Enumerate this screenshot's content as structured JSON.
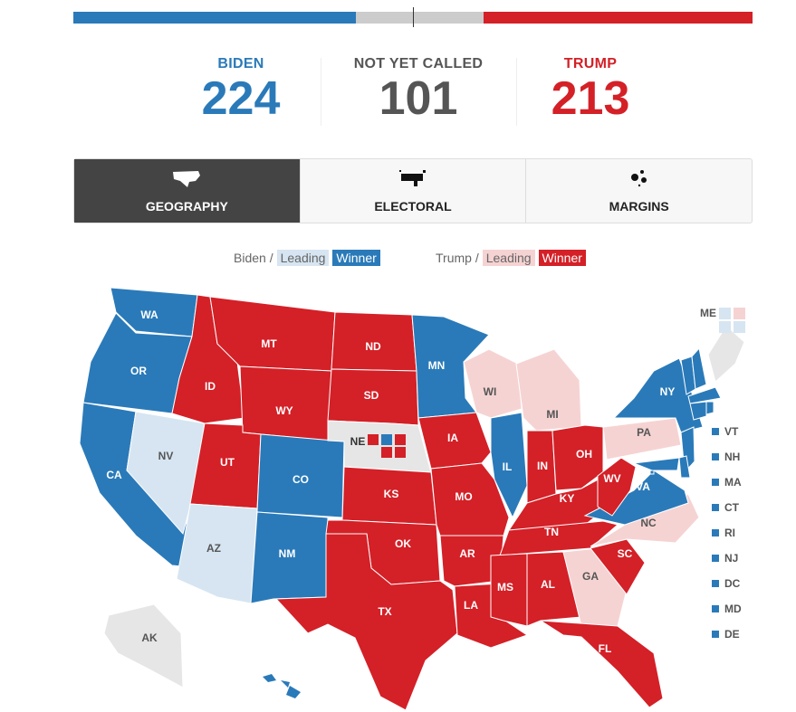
{
  "colors": {
    "biden_winner": "#2a7ab9",
    "biden_leading": "#d6e5f1",
    "trump_winner": "#d42027",
    "trump_leading": "#f6d3d3",
    "undecided": "#e6e6e6",
    "gray": "#cccccc"
  },
  "progress": {
    "biden": 224,
    "undecided": 101,
    "trump": 213,
    "total": 538
  },
  "scores": [
    {
      "label": "BIDEN",
      "value": "224",
      "color": "#2a7ab9"
    },
    {
      "label": "NOT YET CALLED",
      "value": "101",
      "color": "#555555"
    },
    {
      "label": "TRUMP",
      "value": "213",
      "color": "#d42027"
    }
  ],
  "tabs": [
    {
      "label": "GEOGRAPHY",
      "icon": "us-map-icon"
    },
    {
      "label": "ELECTORAL",
      "icon": "cartogram-icon"
    },
    {
      "label": "MARGINS",
      "icon": "bubbles-icon"
    }
  ],
  "legend": {
    "biden": "Biden /",
    "trump": "Trump /",
    "leading": "Leading",
    "winner": "Winner"
  },
  "states": [
    {
      "id": "WA",
      "s": "bw"
    },
    {
      "id": "OR",
      "s": "bw"
    },
    {
      "id": "CA",
      "s": "bw"
    },
    {
      "id": "NV",
      "s": "bl"
    },
    {
      "id": "ID",
      "s": "tw"
    },
    {
      "id": "MT",
      "s": "tw"
    },
    {
      "id": "WY",
      "s": "tw"
    },
    {
      "id": "UT",
      "s": "tw"
    },
    {
      "id": "AZ",
      "s": "bl"
    },
    {
      "id": "CO",
      "s": "bw"
    },
    {
      "id": "NM",
      "s": "bw"
    },
    {
      "id": "ND",
      "s": "tw"
    },
    {
      "id": "SD",
      "s": "tw"
    },
    {
      "id": "NE",
      "s": "un"
    },
    {
      "id": "KS",
      "s": "tw"
    },
    {
      "id": "OK",
      "s": "tw"
    },
    {
      "id": "TX",
      "s": "tw"
    },
    {
      "id": "MN",
      "s": "bw"
    },
    {
      "id": "IA",
      "s": "tw"
    },
    {
      "id": "MO",
      "s": "tw"
    },
    {
      "id": "AR",
      "s": "tw"
    },
    {
      "id": "LA",
      "s": "tw"
    },
    {
      "id": "WI",
      "s": "tl"
    },
    {
      "id": "IL",
      "s": "bw"
    },
    {
      "id": "MI",
      "s": "tl"
    },
    {
      "id": "IN",
      "s": "tw"
    },
    {
      "id": "OH",
      "s": "tw"
    },
    {
      "id": "KY",
      "s": "tw"
    },
    {
      "id": "TN",
      "s": "tw"
    },
    {
      "id": "MS",
      "s": "tw"
    },
    {
      "id": "AL",
      "s": "tw"
    },
    {
      "id": "GA",
      "s": "tl"
    },
    {
      "id": "FL",
      "s": "tw"
    },
    {
      "id": "SC",
      "s": "tw"
    },
    {
      "id": "NC",
      "s": "tl"
    },
    {
      "id": "VA",
      "s": "bw"
    },
    {
      "id": "WV",
      "s": "tw"
    },
    {
      "id": "PA",
      "s": "tl"
    },
    {
      "id": "NY",
      "s": "bw"
    },
    {
      "id": "AK",
      "s": "un"
    },
    {
      "id": "HI",
      "s": "bw"
    },
    {
      "id": "ME",
      "s": "un"
    }
  ],
  "maine_districts": [
    "bl",
    "tl",
    "bl",
    "bl"
  ],
  "nebraska_districts": [
    "tw",
    "bw",
    "tw",
    "tw",
    "tw"
  ],
  "small_states": [
    "VT",
    "NH",
    "MA",
    "CT",
    "RI",
    "NJ",
    "DC",
    "MD",
    "DE"
  ]
}
